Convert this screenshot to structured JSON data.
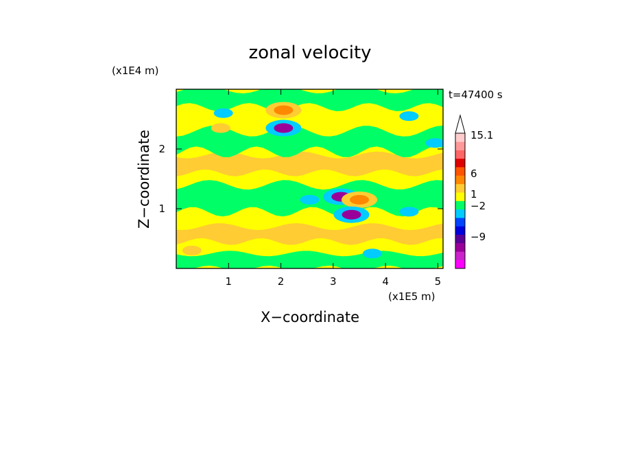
{
  "chart_data": {
    "type": "heatmap",
    "title": "zonal velocity",
    "xlabel": "X−coordinate",
    "ylabel": "Z−coordinate",
    "x_unit": "(x1E5 m)",
    "y_unit": "(x1E4 m)",
    "time_label": "t=47400 s",
    "xlim": [
      0,
      5.1
    ],
    "ylim": [
      0,
      3.0
    ],
    "x_ticks": [
      {
        "value": 1,
        "label": "1"
      },
      {
        "value": 2,
        "label": "2"
      },
      {
        "value": 3,
        "label": "3"
      },
      {
        "value": 4,
        "label": "4"
      },
      {
        "value": 5,
        "label": "5"
      }
    ],
    "y_ticks": [
      {
        "value": 1,
        "label": "1"
      },
      {
        "value": 2,
        "label": "2"
      }
    ],
    "colorbar": {
      "labeled_levels": [
        "15.1",
        "6",
        "1",
        "−2",
        "−9"
      ],
      "colors": [
        "#ff00ff",
        "#cc22cc",
        "#990099",
        "#5a0099",
        "#0000dd",
        "#0044ff",
        "#00ccff",
        "#00ff66",
        "#ffff00",
        "#ffcc33",
        "#ff8800",
        "#ff5500",
        "#dd0000",
        "#ff6666",
        "#ff9999",
        "#ffcccc"
      ],
      "extend_max": true
    },
    "features": [
      {
        "x": 2.05,
        "z": 2.65,
        "value": 6
      },
      {
        "x": 2.05,
        "z": 2.35,
        "value": -9
      },
      {
        "x": 0.9,
        "z": 2.6,
        "value": -2
      },
      {
        "x": 4.45,
        "z": 2.55,
        "value": -2
      },
      {
        "x": 0.85,
        "z": 2.35,
        "value": 2
      },
      {
        "x": 3.15,
        "z": 1.2,
        "value": -9
      },
      {
        "x": 3.5,
        "z": 1.15,
        "value": 6
      },
      {
        "x": 3.35,
        "z": 0.9,
        "value": -9
      },
      {
        "x": 2.55,
        "z": 1.15,
        "value": -2
      },
      {
        "x": 4.45,
        "z": 0.95,
        "value": -2
      },
      {
        "x": 0.3,
        "z": 0.3,
        "value": 2
      },
      {
        "x": 3.75,
        "z": 0.25,
        "value": -2
      },
      {
        "x": 4.95,
        "z": 2.1,
        "value": -2
      }
    ]
  }
}
